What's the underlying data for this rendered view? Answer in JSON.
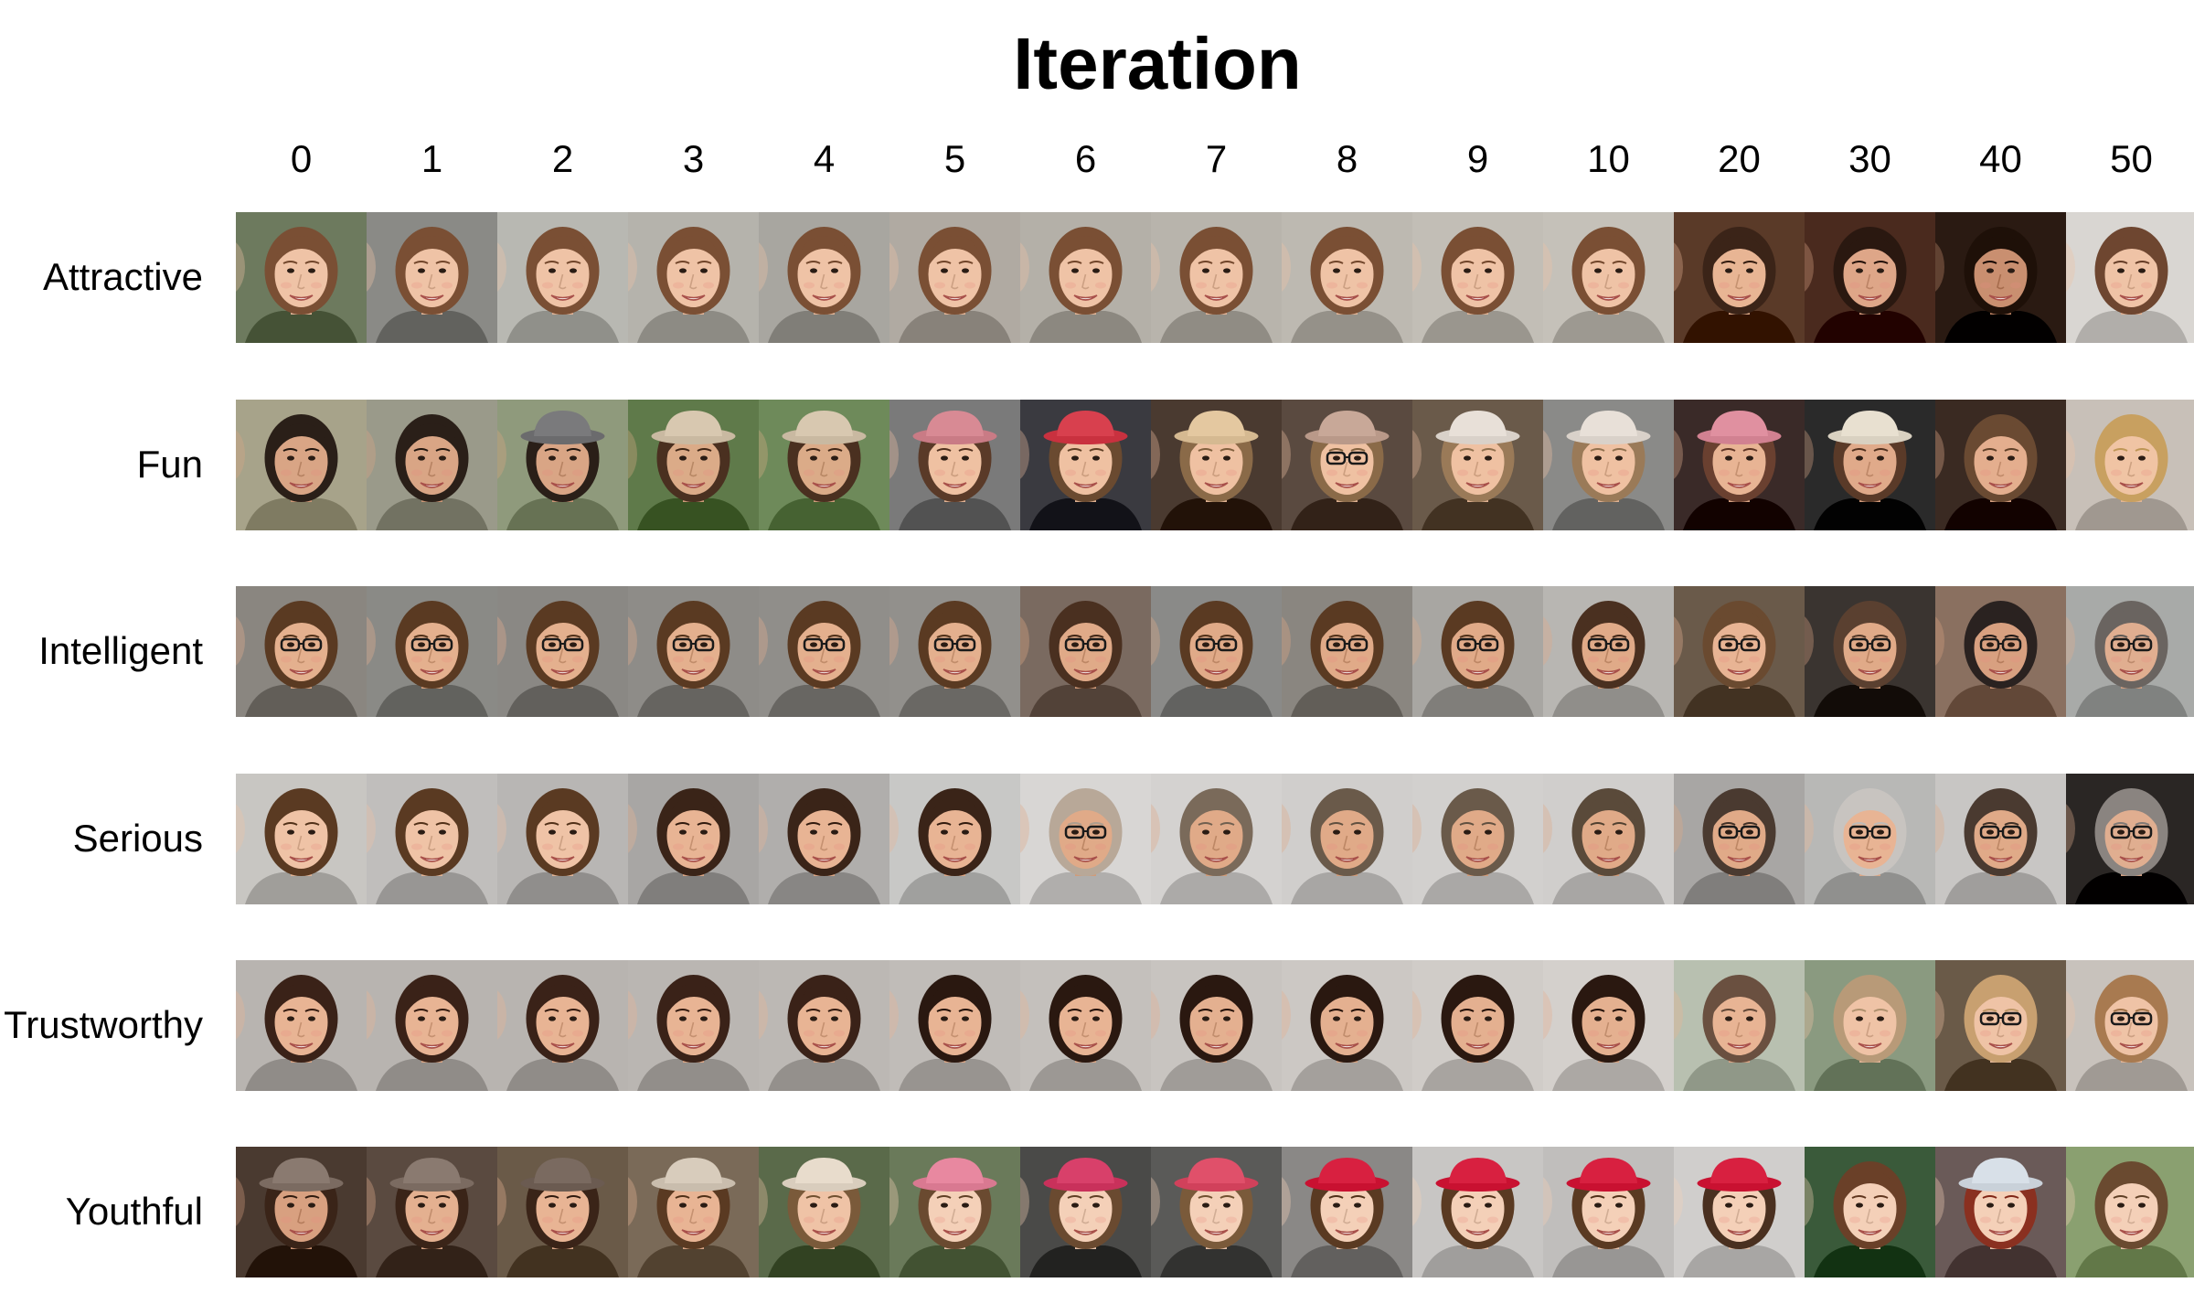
{
  "figure": {
    "title": "Iteration",
    "iterations": [
      "0",
      "1",
      "2",
      "3",
      "4",
      "5",
      "6",
      "7",
      "8",
      "9",
      "10",
      "20",
      "30",
      "40",
      "50"
    ],
    "rows": [
      {
        "label": "Attractive",
        "faces": [
          {
            "bg": "#6d7a5e",
            "skin": "#efc3a6",
            "hair": "#7a4f34",
            "hat": null,
            "glasses": false
          },
          {
            "bg": "#8a8a86",
            "skin": "#efc3a6",
            "hair": "#7a4f34",
            "hat": null,
            "glasses": false
          },
          {
            "bg": "#b8b8b2",
            "skin": "#efc3a6",
            "hair": "#7a4f34",
            "hat": null,
            "glasses": false
          },
          {
            "bg": "#b5b3ac",
            "skin": "#efc3a6",
            "hair": "#7a4f34",
            "hat": null,
            "glasses": false
          },
          {
            "bg": "#a8a6a0",
            "skin": "#efc3a6",
            "hair": "#7a4f34",
            "hat": null,
            "glasses": false
          },
          {
            "bg": "#b0aaa2",
            "skin": "#efc3a6",
            "hair": "#7a4f34",
            "hat": null,
            "glasses": false
          },
          {
            "bg": "#b4b0a8",
            "skin": "#efc3a6",
            "hair": "#7a4f34",
            "hat": null,
            "glasses": false
          },
          {
            "bg": "#b8b4ac",
            "skin": "#efc3a6",
            "hair": "#7a4f34",
            "hat": null,
            "glasses": false
          },
          {
            "bg": "#bdb9b1",
            "skin": "#efc3a6",
            "hair": "#7a4f34",
            "hat": null,
            "glasses": false
          },
          {
            "bg": "#c2beb6",
            "skin": "#efc3a6",
            "hair": "#7a4f34",
            "hat": null,
            "glasses": false
          },
          {
            "bg": "#c5c1b9",
            "skin": "#efc3a6",
            "hair": "#7a4f34",
            "hat": null,
            "glasses": false
          },
          {
            "bg": "#5a3a28",
            "skin": "#e8b594",
            "hair": "#3b2418",
            "hat": null,
            "glasses": false
          },
          {
            "bg": "#4a2a1e",
            "skin": "#dea688",
            "hair": "#2a1810",
            "hat": null,
            "glasses": false
          },
          {
            "bg": "#2a1a12",
            "skin": "#c98f70",
            "hair": "#1e1008",
            "hat": null,
            "glasses": false
          },
          {
            "bg": "#d9d6d2",
            "skin": "#efc3a6",
            "hair": "#6e4630",
            "hat": null,
            "glasses": false
          }
        ]
      },
      {
        "label": "Fun",
        "faces": [
          {
            "bg": "#a7a38a",
            "skin": "#d9a585",
            "hair": "#2a1f18",
            "hat": null,
            "glasses": false
          },
          {
            "bg": "#9a9a8a",
            "skin": "#d9a585",
            "hair": "#2a1f18",
            "hat": null,
            "glasses": false
          },
          {
            "bg": "#8f9a7c",
            "skin": "#d9a585",
            "hair": "#2a1f18",
            "hat": "#7a7a7c",
            "glasses": false
          },
          {
            "bg": "#5f7a4a",
            "skin": "#dbab88",
            "hair": "#4a3020",
            "hat": "#d8c8b0",
            "glasses": false
          },
          {
            "bg": "#6e8a5a",
            "skin": "#dbab88",
            "hair": "#4a3020",
            "hat": "#d8c8b0",
            "glasses": false
          },
          {
            "bg": "#7a7a7a",
            "skin": "#efc1a2",
            "hair": "#5a3a28",
            "hat": "#d88a94",
            "glasses": false
          },
          {
            "bg": "#3a3a40",
            "skin": "#efc1a2",
            "hair": "#6a4a30",
            "hat": "#d8404e",
            "glasses": false
          },
          {
            "bg": "#4a3a30",
            "skin": "#efc1a2",
            "hair": "#8a6a48",
            "hat": "#e4c8a0",
            "glasses": false
          },
          {
            "bg": "#5a4a40",
            "skin": "#efc1a2",
            "hair": "#8a6a48",
            "hat": "#c8a898",
            "glasses": true
          },
          {
            "bg": "#6a5a4a",
            "skin": "#efc1a2",
            "hair": "#9a7a58",
            "hat": "#e8e0d8",
            "glasses": false
          },
          {
            "bg": "#8a8a88",
            "skin": "#efc1a2",
            "hair": "#9a7a58",
            "hat": "#e8e0d8",
            "glasses": false
          },
          {
            "bg": "#3a2a28",
            "skin": "#e8b494",
            "hair": "#6a4030",
            "hat": "#e090a0",
            "glasses": false
          },
          {
            "bg": "#2a2a2a",
            "skin": "#e0aa8a",
            "hair": "#5a3a28",
            "hat": "#e8e0d0",
            "glasses": false
          },
          {
            "bg": "#3a2a22",
            "skin": "#e4ae8e",
            "hair": "#6a4a32",
            "hat": null,
            "glasses": false
          },
          {
            "bg": "#c8c0b8",
            "skin": "#f0c4a4",
            "hair": "#c8a060",
            "hat": null,
            "glasses": false
          }
        ]
      },
      {
        "label": "Intelligent",
        "faces": [
          {
            "bg": "#8a8680",
            "skin": "#e4b08e",
            "hair": "#5a3a22",
            "hat": null,
            "glasses": true
          },
          {
            "bg": "#8a8a86",
            "skin": "#e4b08e",
            "hair": "#5a3a22",
            "hat": null,
            "glasses": true
          },
          {
            "bg": "#8a8884",
            "skin": "#e4b08e",
            "hair": "#5a3a22",
            "hat": null,
            "glasses": true
          },
          {
            "bg": "#8e8c88",
            "skin": "#e4b08e",
            "hair": "#5a3a22",
            "hat": null,
            "glasses": true
          },
          {
            "bg": "#908e8a",
            "skin": "#e4b08e",
            "hair": "#5a3a22",
            "hat": null,
            "glasses": true
          },
          {
            "bg": "#92908c",
            "skin": "#e4b08e",
            "hair": "#5a3a22",
            "hat": null,
            "glasses": true
          },
          {
            "bg": "#7a6a60",
            "skin": "#e0aa88",
            "hair": "#4a3020",
            "hat": null,
            "glasses": true
          },
          {
            "bg": "#8a8a88",
            "skin": "#e0aa88",
            "hair": "#5a3a22",
            "hat": null,
            "glasses": true
          },
          {
            "bg": "#8a8680",
            "skin": "#e0aa88",
            "hair": "#5a3a22",
            "hat": null,
            "glasses": true
          },
          {
            "bg": "#a8a6a2",
            "skin": "#e0aa88",
            "hair": "#5a3a22",
            "hat": null,
            "glasses": true
          },
          {
            "bg": "#b8b6b2",
            "skin": "#e0aa88",
            "hair": "#4a3020",
            "hat": null,
            "glasses": true
          },
          {
            "bg": "#6a5a4a",
            "skin": "#e8b494",
            "hair": "#6a4a30",
            "hat": null,
            "glasses": true
          },
          {
            "bg": "#3a3430",
            "skin": "#e0aa88",
            "hair": "#5a4030",
            "hat": null,
            "glasses": true
          },
          {
            "bg": "#8a7060",
            "skin": "#d8a080",
            "hair": "#2a2220",
            "hat": null,
            "glasses": true
          },
          {
            "bg": "#a8aaa8",
            "skin": "#e0ae90",
            "hair": "#6a6460",
            "hat": null,
            "glasses": true
          }
        ]
      },
      {
        "label": "Serious",
        "faces": [
          {
            "bg": "#c8c6c2",
            "skin": "#efc3a6",
            "hair": "#5a3a22",
            "hat": null,
            "glasses": false
          },
          {
            "bg": "#c0bebc",
            "skin": "#efc3a6",
            "hair": "#5a3a22",
            "hat": null,
            "glasses": false
          },
          {
            "bg": "#b8b6b4",
            "skin": "#efc3a6",
            "hair": "#5a3a22",
            "hat": null,
            "glasses": false
          },
          {
            "bg": "#a8a6a4",
            "skin": "#e8b494",
            "hair": "#3a2418",
            "hat": null,
            "glasses": false
          },
          {
            "bg": "#b0aeac",
            "skin": "#e8b494",
            "hair": "#3a2418",
            "hat": null,
            "glasses": false
          },
          {
            "bg": "#c8c8c6",
            "skin": "#e8b494",
            "hair": "#3a2418",
            "hat": null,
            "glasses": false
          },
          {
            "bg": "#d8d6d4",
            "skin": "#e0aa88",
            "hair": "#b8a898",
            "hat": null,
            "glasses": true
          },
          {
            "bg": "#d4d2d0",
            "skin": "#e0aa88",
            "hair": "#7a6a5a",
            "hat": null,
            "glasses": false
          },
          {
            "bg": "#d0cecc",
            "skin": "#e0aa88",
            "hair": "#6a5a4a",
            "hat": null,
            "glasses": false
          },
          {
            "bg": "#d2d0ce",
            "skin": "#e0aa88",
            "hair": "#6a5a4a",
            "hat": null,
            "glasses": false
          },
          {
            "bg": "#d0cecc",
            "skin": "#e0aa88",
            "hair": "#5a4a3a",
            "hat": null,
            "glasses": false
          },
          {
            "bg": "#a8a6a4",
            "skin": "#e0aa88",
            "hair": "#4a3a30",
            "hat": null,
            "glasses": true
          },
          {
            "bg": "#b8b8b6",
            "skin": "#e8b494",
            "hair": "#c8c4c0",
            "hat": null,
            "glasses": true
          },
          {
            "bg": "#c8c6c4",
            "skin": "#e0aa88",
            "hair": "#4a3a30",
            "hat": null,
            "glasses": true
          },
          {
            "bg": "#2a2624",
            "skin": "#e0ae90",
            "hair": "#8a8480",
            "hat": null,
            "glasses": true
          }
        ]
      },
      {
        "label": "Trustworthy",
        "faces": [
          {
            "bg": "#b8b4b0",
            "skin": "#e8b494",
            "hair": "#3a2218",
            "hat": null,
            "glasses": false
          },
          {
            "bg": "#b8b4b0",
            "skin": "#e8b494",
            "hair": "#3a2218",
            "hat": null,
            "glasses": false
          },
          {
            "bg": "#b8b4b0",
            "skin": "#e8b494",
            "hair": "#3a2218",
            "hat": null,
            "glasses": false
          },
          {
            "bg": "#bab6b2",
            "skin": "#e8b494",
            "hair": "#3a2218",
            "hat": null,
            "glasses": false
          },
          {
            "bg": "#bcb8b4",
            "skin": "#e8b494",
            "hair": "#3a2218",
            "hat": null,
            "glasses": false
          },
          {
            "bg": "#c0bcb8",
            "skin": "#e8b494",
            "hair": "#2a1810",
            "hat": null,
            "glasses": false
          },
          {
            "bg": "#c4c0bc",
            "skin": "#e8b494",
            "hair": "#2a1810",
            "hat": null,
            "glasses": false
          },
          {
            "bg": "#c8c4c0",
            "skin": "#e4b090",
            "hair": "#2a1810",
            "hat": null,
            "glasses": false
          },
          {
            "bg": "#ccc8c4",
            "skin": "#e4b090",
            "hair": "#2a1810",
            "hat": null,
            "glasses": false
          },
          {
            "bg": "#d0ccc8",
            "skin": "#e4b090",
            "hair": "#2a1810",
            "hat": null,
            "glasses": false
          },
          {
            "bg": "#d4d0cc",
            "skin": "#e4b090",
            "hair": "#2a1810",
            "hat": null,
            "glasses": false
          },
          {
            "bg": "#b8c0b0",
            "skin": "#e8b494",
            "hair": "#6a5040",
            "hat": null,
            "glasses": false
          },
          {
            "bg": "#8a9a80",
            "skin": "#efc3a6",
            "hair": "#b89a78",
            "hat": null,
            "glasses": false
          },
          {
            "bg": "#6a5a48",
            "skin": "#efc3a6",
            "hair": "#c8a070",
            "hat": null,
            "glasses": true
          },
          {
            "bg": "#c8c2bc",
            "skin": "#efc3a6",
            "hair": "#a87a50",
            "hat": null,
            "glasses": true
          }
        ]
      },
      {
        "label": "Youthful",
        "faces": [
          {
            "bg": "#4a3a30",
            "skin": "#d8a080",
            "hair": "#3a2418",
            "hat": "#8a7a70",
            "glasses": false
          },
          {
            "bg": "#5a4a40",
            "skin": "#e4b090",
            "hair": "#3a2418",
            "hat": "#8a7a70",
            "glasses": false
          },
          {
            "bg": "#6a5a48",
            "skin": "#e8b494",
            "hair": "#3a2418",
            "hat": "#7a6a60",
            "glasses": false
          },
          {
            "bg": "#7a6a58",
            "skin": "#e8b494",
            "hair": "#5a3a22",
            "hat": "#d8ccbc",
            "glasses": false
          },
          {
            "bg": "#5a6a4a",
            "skin": "#efc3a6",
            "hair": "#7a5a3a",
            "hat": "#e8dccc",
            "glasses": false
          },
          {
            "bg": "#6a7a5a",
            "skin": "#f4d0b8",
            "hair": "#6a4a30",
            "hat": "#e888a0",
            "glasses": false
          },
          {
            "bg": "#4a4a48",
            "skin": "#f4d0b8",
            "hair": "#6a4a30",
            "hat": "#d8406a",
            "glasses": false
          },
          {
            "bg": "#5a5a58",
            "skin": "#f4d0b8",
            "hair": "#7a5a3a",
            "hat": "#e0506a",
            "glasses": false
          },
          {
            "bg": "#8a8886",
            "skin": "#f4d0b8",
            "hair": "#5a3a22",
            "hat": "#d82040",
            "glasses": false
          },
          {
            "bg": "#c8c6c4",
            "skin": "#f4d0b8",
            "hair": "#5a3a22",
            "hat": "#d82040",
            "glasses": false
          },
          {
            "bg": "#c0bebc",
            "skin": "#f4d0b8",
            "hair": "#5a3a22",
            "hat": "#d82040",
            "glasses": false
          },
          {
            "bg": "#d0cecc",
            "skin": "#f4d0b8",
            "hair": "#4a3020",
            "hat": "#d82040",
            "glasses": false
          },
          {
            "bg": "#3a5a3a",
            "skin": "#f4d0b8",
            "hair": "#6a4028",
            "hat": null,
            "glasses": false
          },
          {
            "bg": "#6a5a58",
            "skin": "#f4d0b8",
            "hair": "#8a3020",
            "hat": "#d8e0e8",
            "glasses": false
          },
          {
            "bg": "#8aa070",
            "skin": "#f4d0b8",
            "hair": "#6a4a30",
            "hat": null,
            "glasses": false
          }
        ]
      }
    ]
  }
}
